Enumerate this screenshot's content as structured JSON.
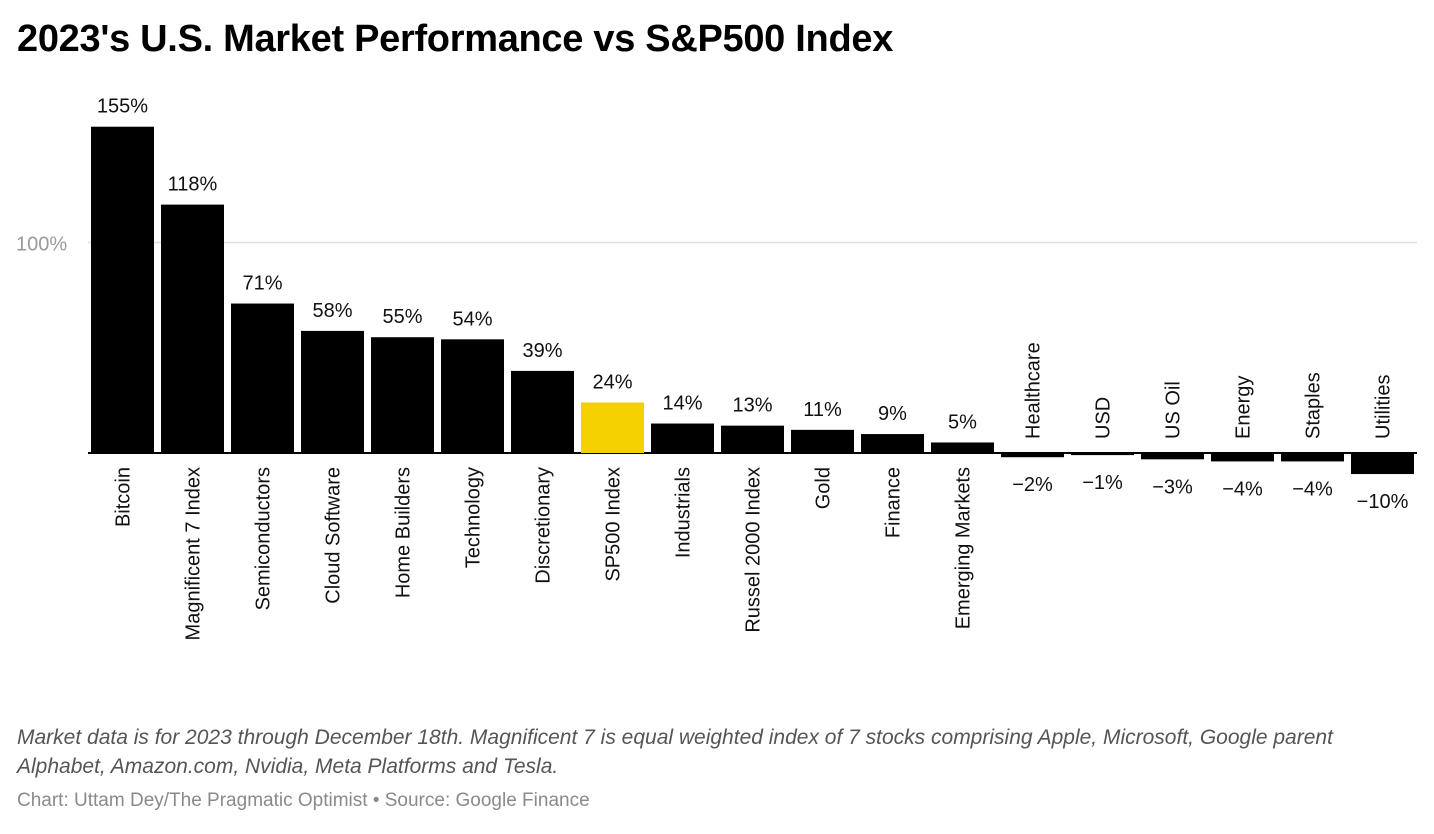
{
  "title": "2023's U.S. Market Performance vs S&P500 Index",
  "note": "Market data is for 2023 through December 18th. Magnificent 7 is equal weighted index of 7 stocks comprising Apple, Microsoft, Google parent Alphabet, Amazon.com, Nvidia, Meta Platforms and Tesla.",
  "credit": "Chart: Uttam Dey/The Pragmatic Optimist • Source: Google Finance",
  "colors": {
    "bar": "#000000",
    "highlight": "#f5d000",
    "gridline": "#e0e0e0",
    "tick_text": "#9a9a9a"
  },
  "chart_data": {
    "type": "bar",
    "categories": [
      "Bitcoin",
      "Magnificent 7 Index",
      "Semiconductors",
      "Cloud Software",
      "Home Builders",
      "Technology",
      "Discretionary",
      "SP500 Index",
      "Industrials",
      "Russel 2000 Index",
      "Gold",
      "Finance",
      "Emerging Markets",
      "Healthcare",
      "USD",
      "US Oil",
      "Energy",
      "Staples",
      "Utilities"
    ],
    "values": [
      155,
      118,
      71,
      58,
      55,
      54,
      39,
      24,
      14,
      13,
      11,
      9,
      5,
      -2,
      -1,
      -3,
      -4,
      -4,
      -10
    ],
    "value_labels": [
      "155%",
      "118%",
      "71%",
      "58%",
      "55%",
      "54%",
      "39%",
      "24%",
      "14%",
      "13%",
      "11%",
      "9%",
      "5%",
      "−2%",
      "−1%",
      "−3%",
      "−4%",
      "−4%",
      "−10%"
    ],
    "highlight_category": "SP500 Index",
    "yticks": [
      100
    ],
    "ytick_labels": [
      "100%"
    ],
    "grid": true,
    "legend": "none"
  }
}
